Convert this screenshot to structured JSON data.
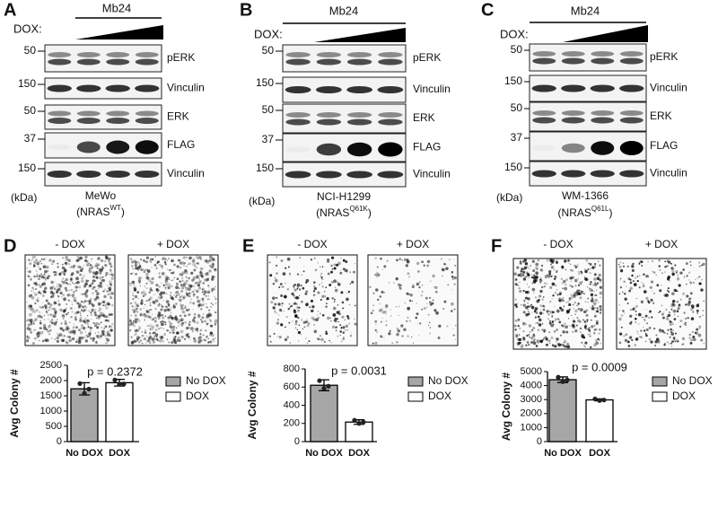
{
  "blots": [
    {
      "label": "A",
      "treatment": "Mb24",
      "dox_label": "DOX:",
      "kda": "(kDa)",
      "cell_line": "MeWo",
      "genotype_prefix": "(NRAS",
      "genotype_sup": "WT",
      "genotype_suffix": ")",
      "rows": [
        {
          "marker": 50,
          "protein": "pERK"
        },
        {
          "marker": 150,
          "protein": "Vinculin"
        },
        {
          "marker": 50,
          "protein": "ERK"
        },
        {
          "marker": 37,
          "protein": "FLAG"
        },
        {
          "marker": 150,
          "protein": "Vinculin"
        }
      ]
    },
    {
      "label": "B",
      "treatment": "Mb24",
      "dox_label": "DOX:",
      "kda": "(kDa)",
      "cell_line": "NCI-H1299",
      "genotype_prefix": "(NRAS",
      "genotype_sup": "Q61K",
      "genotype_suffix": ")",
      "rows": [
        {
          "marker": 50,
          "protein": "pERK"
        },
        {
          "marker": 150,
          "protein": "Vinculin"
        },
        {
          "marker": 50,
          "protein": "ERK"
        },
        {
          "marker": 37,
          "protein": "FLAG"
        },
        {
          "marker": 150,
          "protein": "Vinculin"
        }
      ]
    },
    {
      "label": "C",
      "treatment": "Mb24",
      "dox_label": "DOX:",
      "kda": "(kDa)",
      "cell_line": "WM-1366",
      "genotype_prefix": "(NRAS",
      "genotype_sup": "Q61L",
      "genotype_suffix": ")",
      "rows": [
        {
          "marker": 50,
          "protein": "pERK"
        },
        {
          "marker": 150,
          "protein": "Vinculin"
        },
        {
          "marker": 50,
          "protein": "ERK"
        },
        {
          "marker": 37,
          "protein": "FLAG"
        },
        {
          "marker": 150,
          "protein": "Vinculin"
        }
      ]
    }
  ],
  "colony_panels": [
    {
      "label": "D",
      "conditions": [
        "- DOX",
        "+ DOX"
      ]
    },
    {
      "label": "E",
      "conditions": [
        "- DOX",
        "+ DOX"
      ]
    },
    {
      "label": "F",
      "conditions": [
        "- DOX",
        "+ DOX"
      ]
    }
  ],
  "chart_data": [
    {
      "type": "bar",
      "ylabel": "Avg Colony #",
      "annotation": "p = 0.2372",
      "categories": [
        "No DOX",
        "DOX"
      ],
      "colors": [
        "#a6a6a6",
        "#ffffff"
      ],
      "values": [
        1730,
        1930
      ],
      "errors": [
        200,
        110
      ],
      "points": [
        [
          1900,
          1580,
          1720
        ],
        [
          2020,
          1880,
          1890
        ]
      ],
      "ylim": [
        0,
        2500
      ],
      "yticks": [
        0,
        500,
        1000,
        1500,
        2000,
        2500
      ]
    },
    {
      "type": "bar",
      "ylabel": "Avg Colony #",
      "annotation": "p = 0.0031",
      "categories": [
        "No DOX",
        "DOX"
      ],
      "colors": [
        "#a6a6a6",
        "#ffffff"
      ],
      "values": [
        620,
        215
      ],
      "errors": [
        60,
        25
      ],
      "points": [
        [
          670,
          585,
          610
        ],
        [
          235,
          200,
          215
        ]
      ],
      "ylim": [
        0,
        800
      ],
      "yticks": [
        0,
        200,
        400,
        600,
        800
      ]
    },
    {
      "type": "bar",
      "ylabel": "Avg Colony #",
      "annotation": "p = 0.0009",
      "categories": [
        "No DOX",
        "DOX"
      ],
      "colors": [
        "#a6a6a6",
        "#ffffff"
      ],
      "values": [
        4420,
        2980
      ],
      "errors": [
        200,
        70
      ],
      "points": [
        [
          4600,
          4280,
          4400
        ],
        [
          3050,
          2930,
          2970
        ]
      ],
      "ylim": [
        0,
        5000
      ],
      "yticks": [
        0,
        1000,
        2000,
        3000,
        4000,
        5000
      ]
    }
  ]
}
